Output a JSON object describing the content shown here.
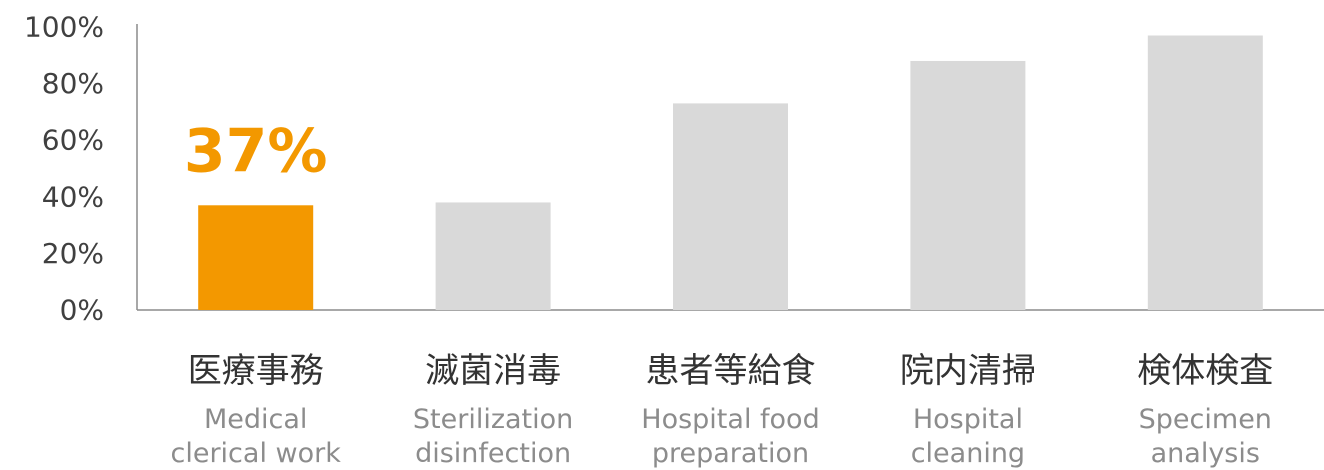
{
  "chart_data": {
    "type": "bar",
    "categories": [
      "医療事務",
      "滅菌消毒",
      "患者等給食",
      "院内清掃",
      "検体検査"
    ],
    "category_subtitles": [
      [
        "Medical",
        "clerical work"
      ],
      [
        "Sterilization",
        "disinfection"
      ],
      [
        "Hospital food",
        "preparation"
      ],
      [
        "Hospital",
        "cleaning"
      ],
      [
        "Specimen",
        "analysis"
      ]
    ],
    "values": [
      37,
      38,
      73,
      88,
      97
    ],
    "ylim": [
      0,
      100
    ],
    "yticks": [
      0,
      20,
      40,
      60,
      80,
      100
    ],
    "ytick_labels": [
      "0%",
      "20%",
      "40%",
      "60%",
      "80%",
      "100%"
    ],
    "highlight_index": 0,
    "data_labels": [
      {
        "index": 0,
        "text": "37%"
      }
    ],
    "colors": {
      "highlight": "#f39800",
      "default": "#d9d9d9",
      "axis": "#8c8c8c"
    },
    "grid": false,
    "legend": "none"
  }
}
